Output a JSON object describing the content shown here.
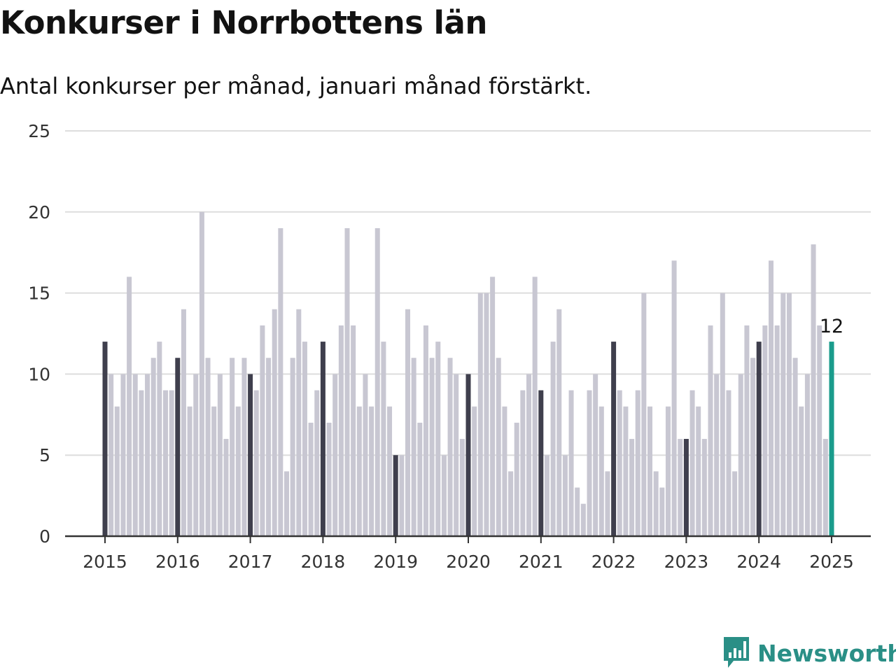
{
  "header": {
    "title": "Konkurser i Norrbottens län",
    "subtitle": "Antal konkurser per månad, januari månad förstärkt."
  },
  "brand": {
    "name": "Newsworthy",
    "logo_icon": "bar-chart-speech-bubble-icon"
  },
  "colors": {
    "bar_default": "#c8c7d2",
    "bar_january": "#3f3f4d",
    "bar_latest": "#1a9c8c",
    "gridline": "#dddddd",
    "axis": "#333333",
    "brand": "#2a8f86"
  },
  "chart_data": {
    "type": "bar",
    "title": "Konkurser i Norrbottens län",
    "subtitle": "Antal konkurser per månad, januari månad förstärkt.",
    "start": "2015-01",
    "frequency": "monthly",
    "x_tick_labels": [
      "2015",
      "2016",
      "2017",
      "2018",
      "2019",
      "2020",
      "2021",
      "2022",
      "2023",
      "2024",
      "2025"
    ],
    "y_tick_labels": [
      "0",
      "5",
      "10",
      "15",
      "20",
      "25"
    ],
    "ylim": [
      0,
      25
    ],
    "grid": true,
    "highlight": "January bars darker; latest month highlighted",
    "latest_value_label": "12",
    "series": [
      {
        "year": "2015",
        "values": [
          12,
          10,
          8,
          10,
          16,
          10,
          9,
          10,
          11,
          12,
          9,
          9
        ]
      },
      {
        "year": "2016",
        "values": [
          11,
          14,
          8,
          10,
          20,
          11,
          8,
          10,
          6,
          11,
          8,
          11
        ]
      },
      {
        "year": "2017",
        "values": [
          10,
          9,
          13,
          11,
          14,
          19,
          4,
          11,
          14,
          12,
          7,
          9
        ]
      },
      {
        "year": "2018",
        "values": [
          12,
          7,
          10,
          13,
          19,
          13,
          8,
          10,
          8,
          19,
          12,
          8
        ]
      },
      {
        "year": "2019",
        "values": [
          5,
          5,
          14,
          11,
          7,
          13,
          11,
          12,
          5,
          11,
          10,
          6
        ]
      },
      {
        "year": "2020",
        "values": [
          10,
          8,
          15,
          15,
          16,
          11,
          8,
          4,
          7,
          9,
          10,
          16
        ]
      },
      {
        "year": "2021",
        "values": [
          9,
          5,
          12,
          14,
          5,
          9,
          3,
          2,
          9,
          10,
          8,
          4
        ]
      },
      {
        "year": "2022",
        "values": [
          12,
          9,
          8,
          6,
          9,
          15,
          8,
          4,
          3,
          8,
          17,
          6
        ]
      },
      {
        "year": "2023",
        "values": [
          6,
          9,
          8,
          6,
          13,
          10,
          15,
          9,
          4,
          10,
          13,
          11
        ]
      },
      {
        "year": "2024",
        "values": [
          12,
          13,
          17,
          13,
          15,
          15,
          11,
          8,
          10,
          18,
          13,
          6
        ]
      },
      {
        "year": "2025",
        "values": [
          12
        ]
      }
    ]
  }
}
